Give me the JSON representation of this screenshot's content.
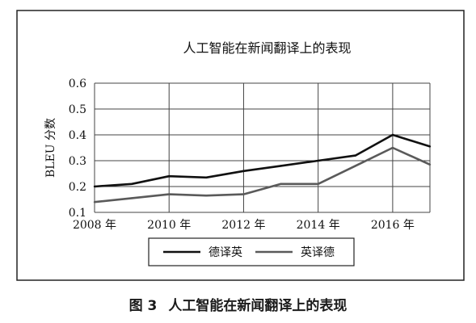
{
  "chart_data": {
    "type": "line",
    "title": "人工智能在新闻翻译上的表现",
    "ylabel": "BLEU 分数",
    "xlabel": "",
    "x": [
      2008,
      2009,
      2010,
      2011,
      2012,
      2013,
      2014,
      2015,
      2016,
      2017
    ],
    "xlim": [
      2008,
      2017
    ],
    "ylim": [
      0.1,
      0.6
    ],
    "xticks": [
      2008,
      2010,
      2012,
      2014,
      2016
    ],
    "xtick_labels": [
      "2008 年",
      "2010 年",
      "2012 年",
      "2014 年",
      "2016 年"
    ],
    "yticks": [
      0.1,
      0.2,
      0.3,
      0.4,
      0.5,
      0.6
    ],
    "ytick_labels": [
      "0.1",
      "0.2",
      "0.3",
      "0.4",
      "0.5",
      "0.6"
    ],
    "grid": true,
    "legend_position": "bottom",
    "series": [
      {
        "name": "德译英",
        "color": "#111111",
        "values": [
          0.2,
          0.21,
          0.24,
          0.235,
          0.26,
          0.28,
          0.3,
          0.32,
          0.4,
          0.355
        ]
      },
      {
        "name": "英译德",
        "color": "#5a5a5a",
        "values": [
          0.14,
          0.155,
          0.17,
          0.165,
          0.17,
          0.21,
          0.21,
          0.28,
          0.35,
          0.285
        ]
      }
    ]
  },
  "caption": {
    "number": "图 3",
    "text": "人工智能在新闻翻译上的表现"
  }
}
